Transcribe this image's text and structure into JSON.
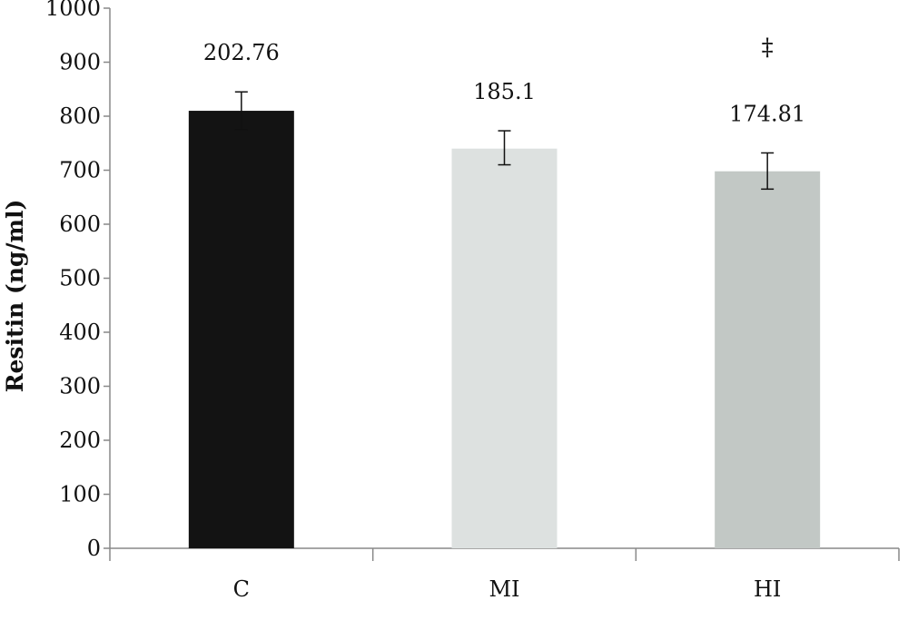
{
  "chart_data": {
    "type": "bar",
    "ylabel": "Resitin (ng/ml)",
    "xlabel": "",
    "ylim": [
      0,
      1000
    ],
    "yticks": [
      0,
      100,
      200,
      300,
      400,
      500,
      600,
      700,
      800,
      900,
      1000
    ],
    "categories": [
      "C",
      "MI",
      "HI"
    ],
    "values": [
      810,
      740,
      698
    ],
    "error_low": [
      775,
      710,
      665
    ],
    "error_high": [
      845,
      773,
      732
    ],
    "data_labels": [
      "202.76",
      "185.1",
      "174.81"
    ],
    "annotations": [
      "",
      "",
      "‡"
    ],
    "colors": [
      "#131313",
      "#dde1e0",
      "#c2c8c5"
    ],
    "grid": false,
    "legend": "none"
  }
}
